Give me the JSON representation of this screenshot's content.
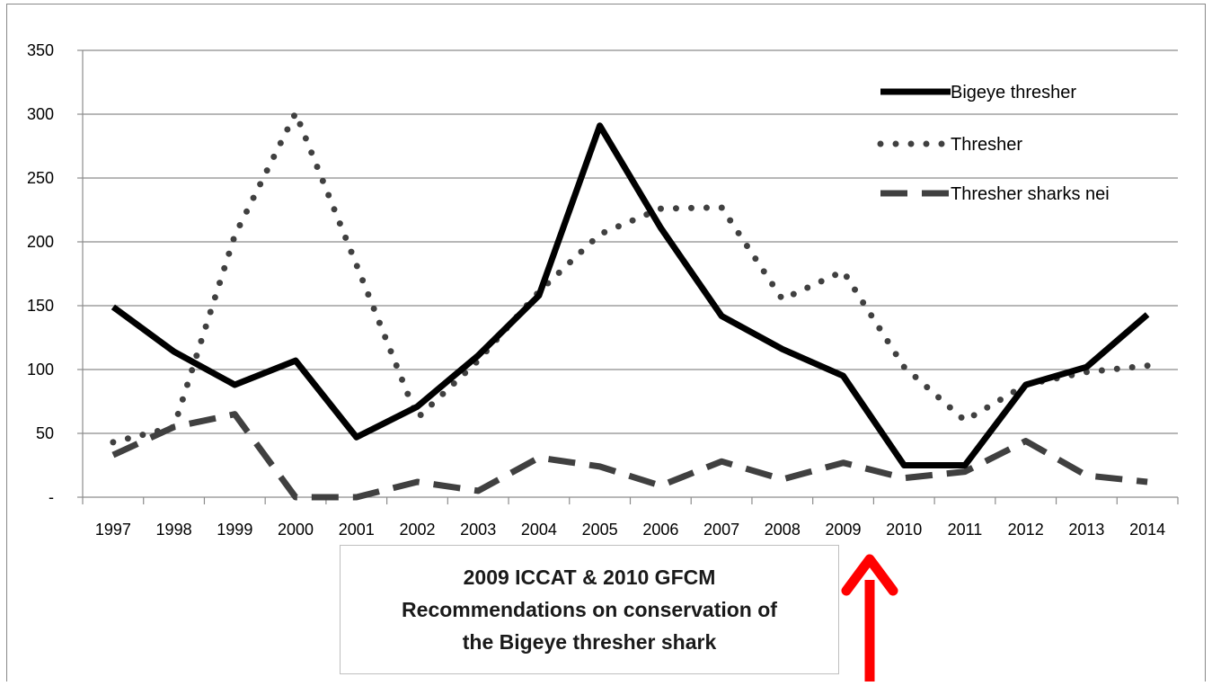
{
  "chart_data": {
    "type": "line",
    "title": "",
    "xlabel": "",
    "ylabel": "",
    "categories": [
      "1997",
      "1998",
      "1999",
      "2000",
      "2001",
      "2002",
      "2003",
      "2004",
      "2005",
      "2006",
      "2007",
      "2008",
      "2009",
      "2010",
      "2011",
      "2012",
      "2013",
      "2014"
    ],
    "ylim": [
      0,
      350
    ],
    "yticks": [
      0,
      50,
      100,
      150,
      200,
      250,
      300,
      350
    ],
    "ytick_labels": [
      "-",
      "50",
      "100",
      "150",
      "200",
      "250",
      "300",
      "350"
    ],
    "grid": "horizontal",
    "legend_position": "top-right",
    "series": [
      {
        "name": "Bigeye thresher",
        "style": "solid",
        "color": "#000000",
        "values": [
          149,
          114,
          88,
          107,
          47,
          71,
          111,
          158,
          291,
          211,
          142,
          116,
          95,
          25,
          25,
          88,
          102,
          143
        ]
      },
      {
        "name": "Thresher",
        "style": "dotted",
        "color": "#404040",
        "values": [
          43,
          55,
          205,
          301,
          182,
          62,
          107,
          161,
          206,
          226,
          227,
          155,
          177,
          102,
          60,
          88,
          98,
          103
        ]
      },
      {
        "name": "Thresher sharks nei",
        "style": "dashed",
        "color": "#404040",
        "values": [
          33,
          55,
          65,
          0,
          0,
          12,
          5,
          31,
          24,
          9,
          28,
          14,
          27,
          15,
          20,
          44,
          17,
          12
        ]
      }
    ],
    "annotation": {
      "lines": [
        "2009 ICCAT & 2010 GFCM",
        "Recommendations on conservation of",
        "the Bigeye thresher shark"
      ],
      "arrow_color": "#ff0000",
      "arrow_target_x": 2009.5
    }
  }
}
